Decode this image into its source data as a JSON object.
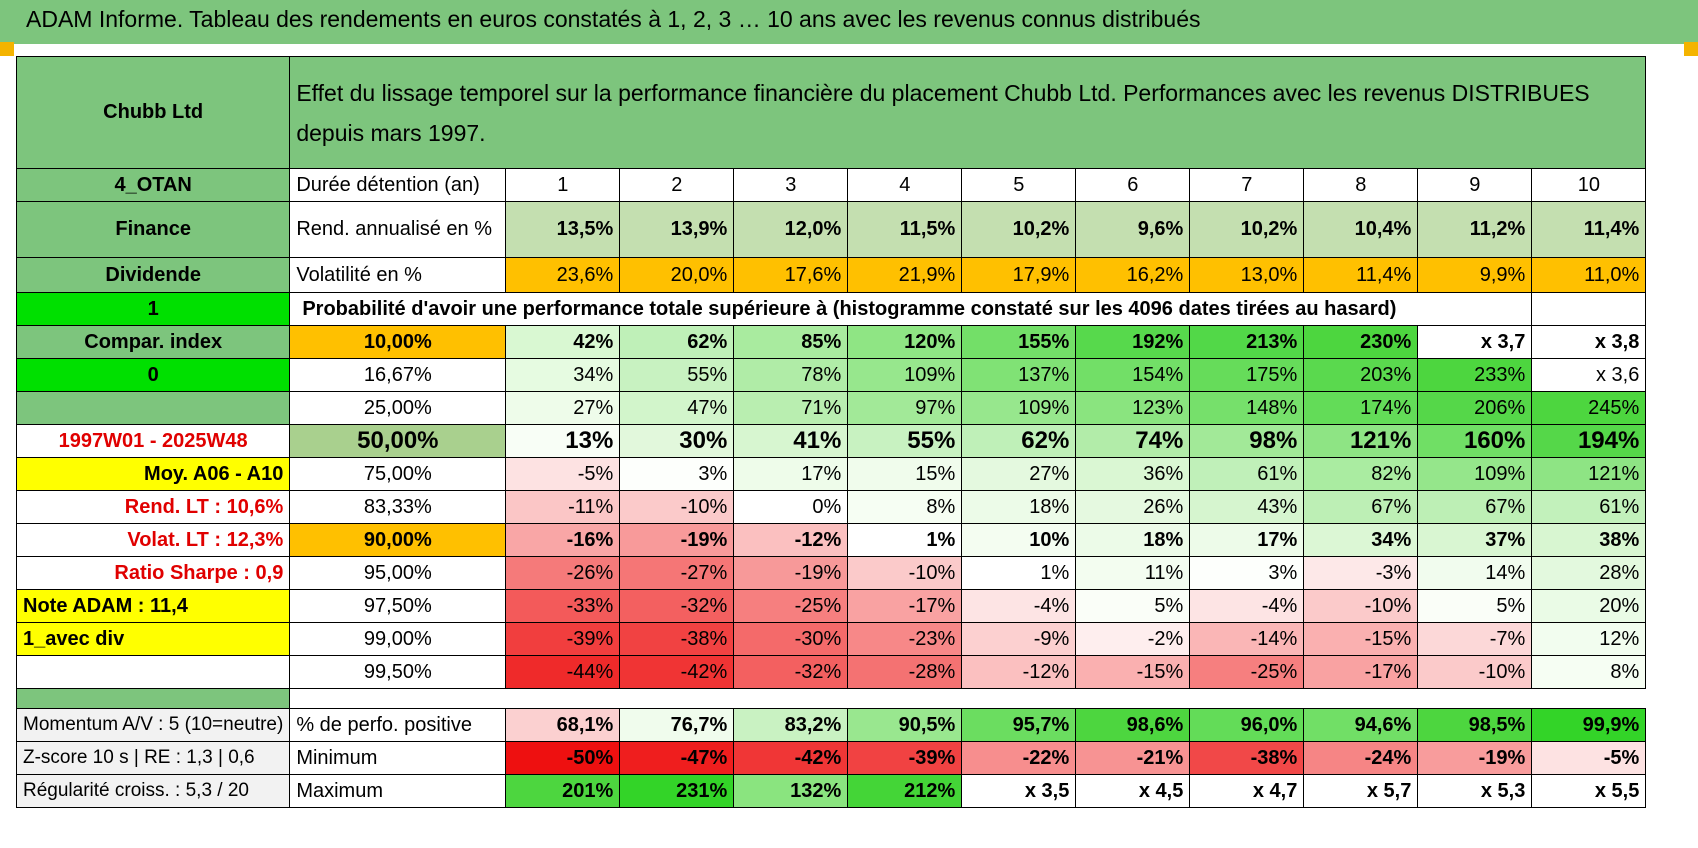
{
  "header": {
    "title": "ADAM Informe. Tableau des rendements en euros constatés à 1, 2, 3 … 10 ans avec les revenus connus distribués"
  },
  "left": {
    "name": "Chubb Ltd",
    "otan": "4_OTAN",
    "sector": "Finance",
    "dividend": "Dividende",
    "flag1": "1",
    "compar": "Compar. index",
    "flag0": "0",
    "period": "1997W01 - 2025W48",
    "moy": "Moy. A06 - A10",
    "rend_lt": "Rend. LT :    10,6%",
    "volat_lt": "Volat. LT :    12,3%",
    "sharpe": "Ratio Sharpe :     0,9",
    "note": "Note ADAM : 11,4",
    "div_mode": "1_avec div",
    "momentum": "Momentum A/V : 5 (10=neutre)",
    "zscore": "Z-score 10 s | RE : 1,3 | 0,6",
    "regularite": "Régularité croiss. : 5,3 / 20"
  },
  "description": "Effet du lissage temporel sur la performance financière du placement Chubb Ltd. Performances avec les revenus DISTRIBUES depuis mars 1997.",
  "years_label": "Durée détention (an)",
  "years": [
    "1",
    "2",
    "3",
    "4",
    "5",
    "6",
    "7",
    "8",
    "9",
    "10"
  ],
  "rend": {
    "label": "Rend. annualisé en %",
    "values": [
      "13,5%",
      "13,9%",
      "12,0%",
      "11,5%",
      "10,2%",
      "9,6%",
      "10,2%",
      "10,4%",
      "11,2%",
      "11,4%"
    ]
  },
  "vol": {
    "label": "Volatilité en %",
    "values": [
      "23,6%",
      "20,0%",
      "17,6%",
      "21,9%",
      "17,9%",
      "16,2%",
      "13,0%",
      "11,4%",
      "9,9%",
      "11,0%"
    ]
  },
  "prob_title": "Probabilité d'avoir une performance totale supérieure à (histogramme constaté sur les 4096 dates tirées au hasard)",
  "quantiles": [
    {
      "label": "10,00%",
      "values": [
        "42%",
        "62%",
        "85%",
        "120%",
        "155%",
        "192%",
        "213%",
        "230%",
        "x 3,7",
        "x 3,8"
      ],
      "colors": [
        "#d9f8d2",
        "#bff0b8",
        "#a9eb9f",
        "#8fe584",
        "#73df68",
        "#57d94c",
        "#52d848",
        "#4dd63f",
        "#ffffff",
        "#ffffff"
      ]
    },
    {
      "label": "16,67%",
      "values": [
        "34%",
        "55%",
        "78%",
        "109%",
        "137%",
        "154%",
        "175%",
        "203%",
        "233%",
        "x 3,6"
      ],
      "colors": [
        "#e6fbe1",
        "#c8f2c1",
        "#b0eca7",
        "#97e78d",
        "#80e275",
        "#72df67",
        "#66dc5a",
        "#5ad94e",
        "#4dd63f",
        "#ffffff"
      ]
    },
    {
      "label": "25,00%",
      "values": [
        "27%",
        "47%",
        "71%",
        "97%",
        "109%",
        "123%",
        "148%",
        "174%",
        "206%",
        "245%"
      ],
      "colors": [
        "#eefcea",
        "#d2f5cb",
        "#b9eeb0",
        "#a2e998",
        "#97e78d",
        "#8ae47f",
        "#76e06b",
        "#63dc58",
        "#55d749",
        "#4dd63f"
      ]
    },
    {
      "label": "50,00%",
      "values": [
        "13%",
        "30%",
        "41%",
        "55%",
        "62%",
        "74%",
        "98%",
        "121%",
        "160%",
        "194%"
      ],
      "colors": [
        "#f8fef6",
        "#e2f8dc",
        "#d7f6d0",
        "#c8f2c1",
        "#bff0b8",
        "#b2eca9",
        "#a2e998",
        "#8ee484",
        "#70df65",
        "#55d749"
      ]
    },
    {
      "label": "75,00%",
      "values": [
        "-5%",
        "3%",
        "17%",
        "15%",
        "27%",
        "36%",
        "61%",
        "82%",
        "109%",
        "121%"
      ],
      "colors": [
        "#fde2e2",
        "#fdfffc",
        "#eefcea",
        "#f0fcec",
        "#e4f9df",
        "#daf7d3",
        "#c0f0b9",
        "#aaec a1",
        "#95e68b",
        "#8ee484"
      ]
    },
    {
      "label": "83,33%",
      "values": [
        "-11%",
        "-10%",
        "0%",
        "8%",
        "18%",
        "26%",
        "43%",
        "67%",
        "67%",
        "61%"
      ],
      "colors": [
        "#fbc6c6",
        "#fbcaca",
        "#ffffff",
        "#f6fef3",
        "#ecfbe8",
        "#e5f9e0",
        "#d6f5cf",
        "#bdefb5",
        "#bdefb5",
        "#c2f1bb"
      ]
    },
    {
      "label": "90,00%",
      "values": [
        "-16%",
        "-19%",
        "-12%",
        "1%",
        "10%",
        "18%",
        "17%",
        "34%",
        "37%",
        "38%"
      ],
      "colors": [
        "#f9a6a6",
        "#f89a9a",
        "#fbc0c0",
        "#ffffff",
        "#f4fdf1",
        "#ecfbe8",
        "#edfbe9",
        "#dcf7d5",
        "#d9f6d2",
        "#d8f6d1"
      ]
    },
    {
      "label": "95,00%",
      "values": [
        "-26%",
        "-27%",
        "-19%",
        "-10%",
        "1%",
        "11%",
        "3%",
        "-3%",
        "14%",
        "28%"
      ],
      "colors": [
        "#f57a7a",
        "#f57676",
        "#f79999",
        "#fbcaca",
        "#ffffff",
        "#f3fdf0",
        "#fdfffc",
        "#fde8e8",
        "#f1fcee",
        "#e3f9de"
      ]
    },
    {
      "label": "97,50%",
      "values": [
        "-33%",
        "-32%",
        "-25%",
        "-17%",
        "-4%",
        "5%",
        "-4%",
        "-10%",
        "5%",
        "20%"
      ],
      "colors": [
        "#f35a5a",
        "#f36060",
        "#f67f7f",
        "#f9a2a2",
        "#fde4e4",
        "#fafef8",
        "#fde4e4",
        "#fbcaca",
        "#fafef8",
        "#eafbe6"
      ]
    },
    {
      "label": "99,00%",
      "values": [
        "-39%",
        "-38%",
        "-30%",
        "-23%",
        "-9%",
        "-2%",
        "-14%",
        "-15%",
        "-7%",
        "12%"
      ],
      "colors": [
        "#f13e3e",
        "#f14242",
        "#f46a6a",
        "#f78888",
        "#fcd0d0",
        "#feeeee",
        "#fab6b6",
        "#fab0b0",
        "#fcd8d8",
        "#f2fdef"
      ]
    },
    {
      "label": "99,50%",
      "values": [
        "-44%",
        "-42%",
        "-32%",
        "-28%",
        "-12%",
        "-15%",
        "-25%",
        "-17%",
        "-10%",
        "8%"
      ],
      "colors": [
        "#ef2a2a",
        "#f03434",
        "#f36060",
        "#f47272",
        "#fbc0c0",
        "#fab0b0",
        "#f67f7f",
        "#f9a2a2",
        "#fbcaca",
        "#f6fef3"
      ]
    }
  ],
  "stats": {
    "pos": {
      "label": "% de perfo. positive",
      "values": [
        "68,1%",
        "76,7%",
        "83,2%",
        "90,5%",
        "95,7%",
        "98,6%",
        "96,0%",
        "94,6%",
        "98,5%",
        "99,9%"
      ],
      "colors": [
        "#fbd0d0",
        "#f0fced",
        "#c9f2c2",
        "#99e78f",
        "#6bdd60",
        "#4dd63f",
        "#63dc58",
        "#71df66",
        "#4dd63f",
        "#33d428"
      ]
    },
    "min": {
      "label": "Minimum",
      "values": [
        "-50%",
        "-47%",
        "-42%",
        "-39%",
        "-22%",
        "-21%",
        "-38%",
        "-24%",
        "-19%",
        "-5%"
      ],
      "colors": [
        "#ee1010",
        "#ef1e1e",
        "#f03636",
        "#f14242",
        "#f78e8e",
        "#f79393",
        "#f14848",
        "#f68585",
        "#f89c9c",
        "#fde2e2"
      ]
    },
    "max": {
      "label": "Maximum",
      "values": [
        "201%",
        "231%",
        "132%",
        "212%",
        "x 3,5",
        "x 4,5",
        "x 4,7",
        "x 5,7",
        "x 5,3",
        "x 5,5"
      ],
      "colors": [
        "#4dd63f",
        "#33d428",
        "#8ae47f",
        "#44d537",
        "#ffffff",
        "#ffffff",
        "#ffffff",
        "#ffffff",
        "#ffffff",
        "#ffffff"
      ]
    }
  }
}
